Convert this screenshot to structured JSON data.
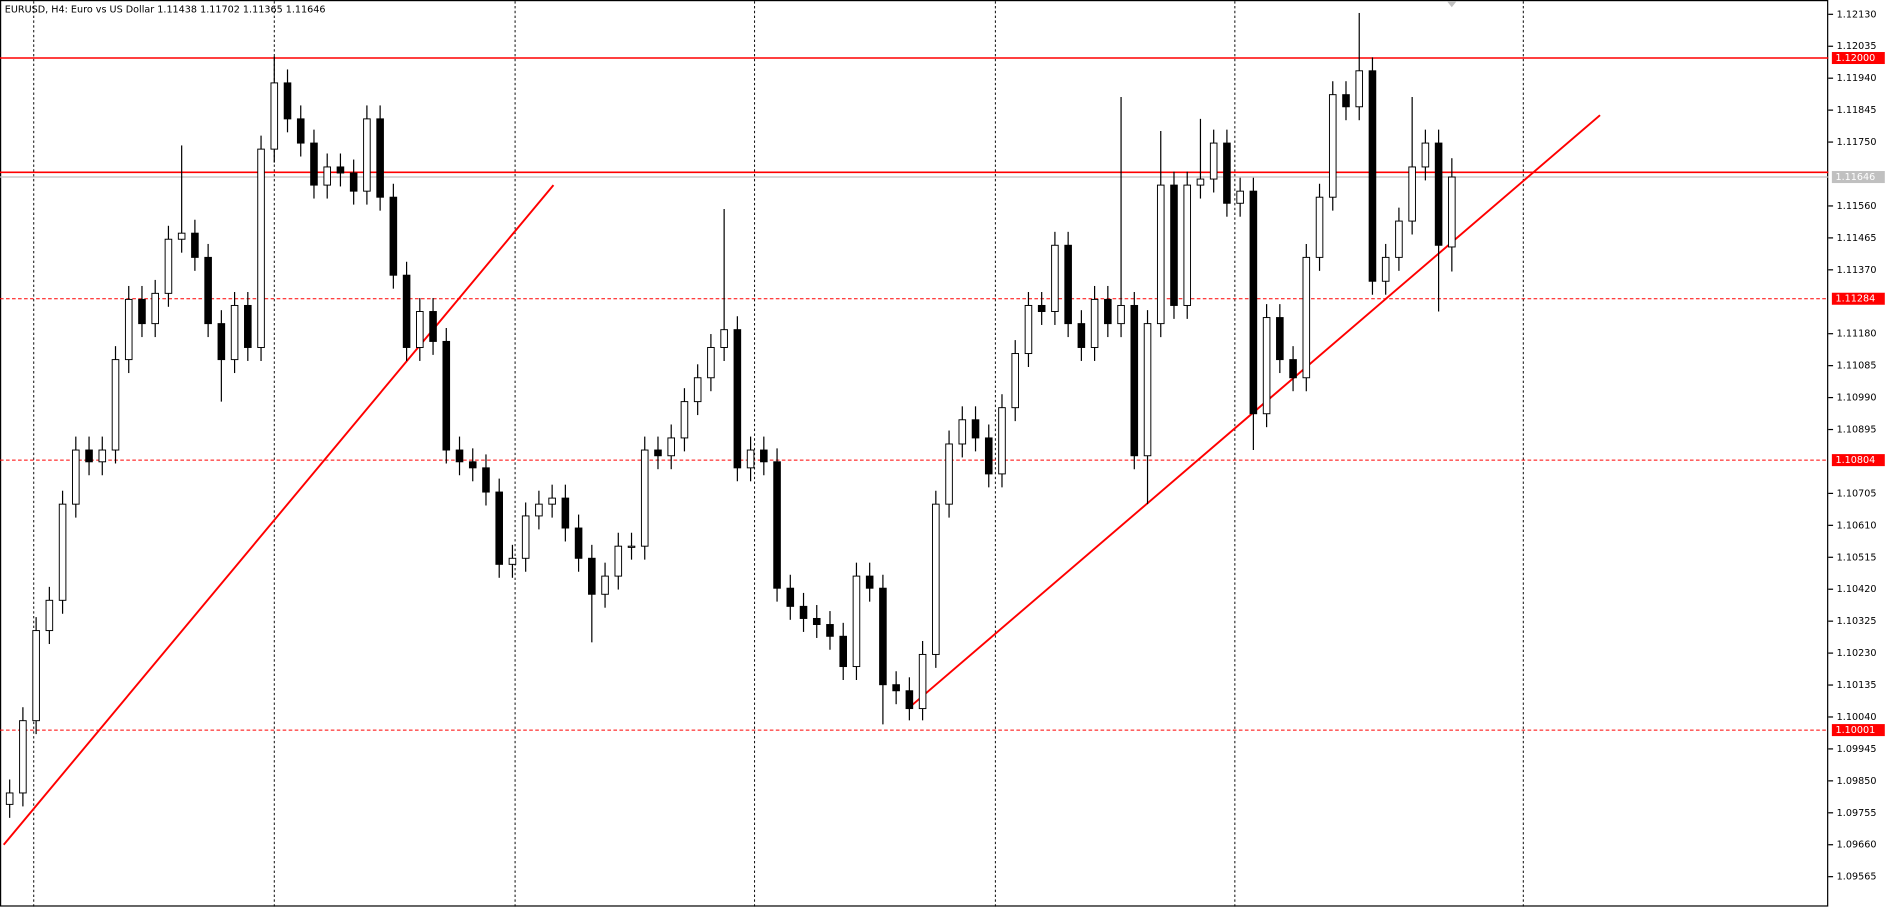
{
  "chart_data": {
    "type": "candlestick",
    "title": "EURUSD, H4:  Euro vs US Dollar  1.11438 1.11702 1.11365 1.11646",
    "open": [
      1.0978,
      1.09814,
      1.10029,
      1.10297,
      1.10387,
      1.10673,
      1.10834,
      1.10799,
      1.10834,
      1.11103,
      1.11282,
      1.1121,
      1.113,
      1.11461,
      1.11479,
      1.11407,
      1.1121,
      1.11103,
      1.11264,
      1.11139,
      1.11729,
      1.11926,
      1.11819,
      1.11747,
      1.11622,
      1.11676,
      1.11658,
      1.11604,
      1.11819,
      1.11586,
      1.11354,
      1.11139,
      1.11246,
      1.11157,
      1.10834,
      1.10799,
      1.10781,
      1.10709,
      1.10494,
      1.10512,
      1.10638,
      1.10673,
      1.10691,
      1.10602,
      1.10512,
      1.10405,
      1.10459,
      1.10548,
      1.10548,
      1.10834,
      1.10817,
      1.1087,
      1.10978,
      1.11049,
      1.11139,
      1.11192,
      1.10781,
      1.10834,
      1.10799,
      1.10423,
      1.10369,
      1.10333,
      1.10315,
      1.1028,
      1.1019,
      1.10459,
      1.10423,
      1.10136,
      1.10118,
      1.10065,
      1.10226,
      1.10673,
      1.10852,
      1.10924,
      1.1087,
      1.10763,
      1.1096,
      1.11121,
      1.11264,
      1.11246,
      1.11443,
      1.1121,
      1.11139,
      1.11282,
      1.1121,
      1.11264,
      1.10817,
      1.1121,
      1.11622,
      1.11264,
      1.11622,
      1.1164,
      1.11747,
      1.11568,
      1.11604,
      1.10942,
      1.11228,
      1.11103,
      1.11049,
      1.11407,
      1.11586,
      1.11891,
      1.11855,
      1.11962,
      1.11336,
      1.11407,
      1.11515,
      1.11676,
      1.11747,
      1.11438
    ],
    "high": [
      1.09854,
      1.10069,
      1.10337,
      1.10427,
      1.10713,
      1.10874,
      1.10874,
      1.10874,
      1.11143,
      1.11322,
      1.11322,
      1.1134,
      1.11501,
      1.1174,
      1.11519,
      1.11447,
      1.1125,
      1.11304,
      1.11304,
      1.11769,
      1.12005,
      1.11966,
      1.11859,
      1.11787,
      1.11716,
      1.11716,
      1.11698,
      1.11859,
      1.11859,
      1.11626,
      1.11394,
      1.11286,
      1.11286,
      1.11197,
      1.10874,
      1.10839,
      1.10821,
      1.10749,
      1.10552,
      1.10678,
      1.10713,
      1.10731,
      1.10731,
      1.10642,
      1.10552,
      1.10499,
      1.10588,
      1.10588,
      1.10874,
      1.10874,
      1.1091,
      1.11018,
      1.11089,
      1.11179,
      1.11551,
      1.11232,
      1.10874,
      1.10874,
      1.10839,
      1.10463,
      1.10409,
      1.10373,
      1.10355,
      1.1032,
      1.10499,
      1.10499,
      1.10463,
      1.10176,
      1.10158,
      1.10266,
      1.10713,
      1.10892,
      1.10964,
      1.10964,
      1.1091,
      1.11,
      1.11161,
      1.11304,
      1.11304,
      1.11483,
      1.11483,
      1.1125,
      1.11322,
      1.11322,
      1.11884,
      1.11304,
      1.1125,
      1.11783,
      1.11662,
      1.11662,
      1.11819,
      1.11787,
      1.11787,
      1.11644,
      1.11644,
      1.11268,
      1.11268,
      1.11143,
      1.11447,
      1.11626,
      1.11931,
      1.11931,
      1.12134,
      1.12002,
      1.11447,
      1.11555,
      1.11884,
      1.11787,
      1.11787,
      1.11702
    ],
    "low": [
      1.0974,
      1.09774,
      1.09989,
      1.10257,
      1.10347,
      1.10633,
      1.10759,
      1.10759,
      1.10794,
      1.11063,
      1.1117,
      1.1117,
      1.1126,
      1.11421,
      1.11367,
      1.1117,
      1.10978,
      1.11063,
      1.11099,
      1.11099,
      1.11689,
      1.11779,
      1.11707,
      1.11582,
      1.11582,
      1.11618,
      1.11564,
      1.11564,
      1.11546,
      1.11314,
      1.11099,
      1.11099,
      1.11117,
      1.10794,
      1.10759,
      1.10741,
      1.10669,
      1.10454,
      1.10454,
      1.10472,
      1.10598,
      1.10633,
      1.10562,
      1.10472,
      1.10262,
      1.10365,
      1.10419,
      1.10508,
      1.10508,
      1.10777,
      1.10777,
      1.1083,
      1.10938,
      1.11009,
      1.11099,
      1.10741,
      1.10741,
      1.10759,
      1.10383,
      1.10329,
      1.10293,
      1.10275,
      1.1024,
      1.1015,
      1.1015,
      1.10383,
      1.10018,
      1.10078,
      1.1003,
      1.1003,
      1.10186,
      1.10633,
      1.10812,
      1.1083,
      1.10723,
      1.10723,
      1.1092,
      1.11081,
      1.11206,
      1.11206,
      1.1117,
      1.11099,
      1.11099,
      1.1117,
      1.1117,
      1.10777,
      1.10673,
      1.1117,
      1.11224,
      1.11224,
      1.11582,
      1.116,
      1.11528,
      1.11528,
      1.10834,
      1.10902,
      1.11063,
      1.11009,
      1.11009,
      1.11367,
      1.11546,
      1.11815,
      1.11815,
      1.11296,
      1.11296,
      1.11367,
      1.11475,
      1.11636,
      1.11246,
      1.11365
    ],
    "close": [
      1.09814,
      1.10029,
      1.10297,
      1.10387,
      1.10673,
      1.10834,
      1.10799,
      1.10834,
      1.11103,
      1.11282,
      1.1121,
      1.113,
      1.11461,
      1.11479,
      1.11407,
      1.1121,
      1.11103,
      1.11264,
      1.11139,
      1.11729,
      1.11926,
      1.11819,
      1.11747,
      1.11622,
      1.11676,
      1.11658,
      1.11604,
      1.11819,
      1.11586,
      1.11354,
      1.11139,
      1.11246,
      1.11157,
      1.10834,
      1.10799,
      1.10781,
      1.10709,
      1.10494,
      1.10512,
      1.10638,
      1.10673,
      1.10691,
      1.10602,
      1.10512,
      1.10405,
      1.10459,
      1.10548,
      1.10548,
      1.10834,
      1.10817,
      1.1087,
      1.10978,
      1.11049,
      1.11139,
      1.11192,
      1.10781,
      1.10834,
      1.10799,
      1.10423,
      1.10369,
      1.10333,
      1.10315,
      1.1028,
      1.1019,
      1.10459,
      1.10423,
      1.10136,
      1.10118,
      1.10065,
      1.10226,
      1.10673,
      1.10852,
      1.10924,
      1.1087,
      1.10763,
      1.1096,
      1.11121,
      1.11264,
      1.11246,
      1.11443,
      1.1121,
      1.11139,
      1.11282,
      1.1121,
      1.11264,
      1.10817,
      1.1121,
      1.11622,
      1.11264,
      1.11622,
      1.1164,
      1.11747,
      1.11568,
      1.11604,
      1.10942,
      1.11228,
      1.11103,
      1.11049,
      1.11407,
      1.11586,
      1.11891,
      1.11855,
      1.11962,
      1.11336,
      1.11407,
      1.11515,
      1.11676,
      1.11747,
      1.11443,
      1.11646
    ],
    "xlim": [
      -0.73,
      137.45
    ],
    "ylim": [
      1.09476,
      1.12169
    ],
    "yticks": [
      {
        "value": 1.1213,
        "label": "1.12130"
      },
      {
        "value": 1.12035,
        "label": "1.12035"
      },
      {
        "value": 1.1194,
        "label": "1.11940"
      },
      {
        "value": 1.11845,
        "label": "1.11845"
      },
      {
        "value": 1.1175,
        "label": "1.11750"
      },
      {
        "value": 1.1156,
        "label": "1.11560"
      },
      {
        "value": 1.11465,
        "label": "1.11465"
      },
      {
        "value": 1.1137,
        "label": "1.11370"
      },
      {
        "value": 1.1118,
        "label": "1.11180"
      },
      {
        "value": 1.11085,
        "label": "1.11085"
      },
      {
        "value": 1.1099,
        "label": "1.10990"
      },
      {
        "value": 1.10895,
        "label": "1.10895"
      },
      {
        "value": 1.10705,
        "label": "1.10705"
      },
      {
        "value": 1.1061,
        "label": "1.10610"
      },
      {
        "value": 1.10515,
        "label": "1.10515"
      },
      {
        "value": 1.1042,
        "label": "1.10420"
      },
      {
        "value": 1.10325,
        "label": "1.10325"
      },
      {
        "value": 1.1023,
        "label": "1.10230"
      },
      {
        "value": 1.10135,
        "label": "1.10135"
      },
      {
        "value": 1.1004,
        "label": "1.10040"
      },
      {
        "value": 1.09945,
        "label": "1.09945"
      },
      {
        "value": 1.0985,
        "label": "1.09850"
      },
      {
        "value": 1.09755,
        "label": "1.09755"
      },
      {
        "value": 1.0966,
        "label": "1.09660"
      },
      {
        "value": 1.09565,
        "label": "1.09565"
      }
    ],
    "levels": [
      {
        "value": 1.12,
        "label": "1.12000",
        "style": "solid"
      },
      {
        "value": 1.1166,
        "style": "solid"
      },
      {
        "value": 1.11284,
        "label": "1.11284",
        "style": "dashed"
      },
      {
        "value": 1.10804,
        "label": "1.10804",
        "style": "dashed"
      },
      {
        "value": 1.10001,
        "label": "1.10001",
        "style": "dashed"
      }
    ],
    "bid": {
      "value": 1.11646,
      "label": "1.11646"
    },
    "trendlines": [
      {
        "x": [
          -0.45,
          41.1
        ],
        "y": [
          1.0966,
          1.11622
        ]
      },
      {
        "x": [
          67.9,
          120.2
        ],
        "y": [
          1.10065,
          1.1183
        ]
      }
    ],
    "xgrid": [
      1.82,
      20,
      38.2,
      56.3,
      74.5,
      92.6,
      114.4
    ],
    "up_color": "#ffffff",
    "down_color": "#000000",
    "line_color": "#000000",
    "level_color": "#ff0000",
    "bid_color": "#c0c0c0"
  }
}
